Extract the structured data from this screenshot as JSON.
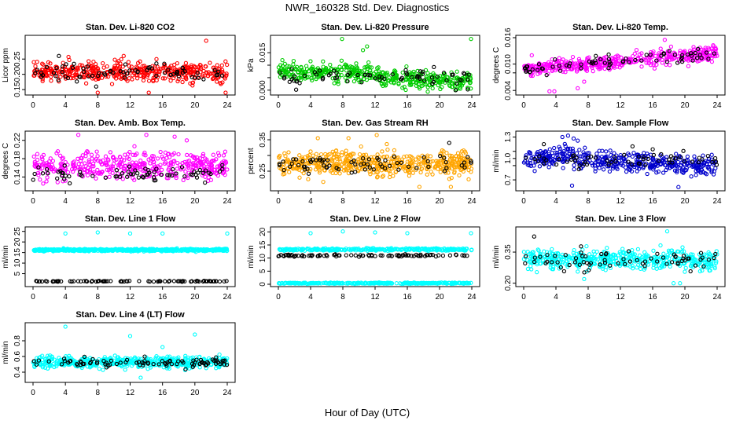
{
  "figure": {
    "title": "NWR_160328  Std. Dev. Diagnostics",
    "xlabel": "Hour of Day (UTC)"
  },
  "chart_data": [
    {
      "type": "scatter",
      "title": "Stan. Dev. Li-820 CO2",
      "ylabel": "Licor ppm",
      "xlim": [
        0,
        24
      ],
      "xticks": [
        "0",
        "4",
        "8",
        "12",
        "16",
        "20",
        "24"
      ],
      "ylim": [
        0.14,
        0.32
      ],
      "yticks": [
        0.15,
        0.2,
        0.25
      ],
      "ytick_labels": [
        "0.15",
        "0.20",
        "0.25"
      ],
      "series": [
        {
          "color": "#ff0000",
          "n": 440,
          "mean": 0.208,
          "spread": 0.022,
          "outliers": [
            [
              0.1,
              0.24
            ],
            [
              8.0,
              0.14
            ],
            [
              11.2,
              0.26
            ],
            [
              14.3,
              0.14
            ],
            [
              21.4,
              0.31
            ],
            [
              23.8,
              0.14
            ]
          ]
        },
        {
          "color": "#000000",
          "n": 70,
          "mean": 0.205,
          "spread": 0.02,
          "outliers": [
            [
              3.2,
              0.26
            ],
            [
              7.8,
              0.16
            ]
          ]
        }
      ]
    },
    {
      "type": "scatter",
      "title": "Stan. Dev. Li-820 Pressure",
      "ylabel": "kPa",
      "xlim": [
        0,
        24
      ],
      "xticks": [
        "0",
        "4",
        "8",
        "12",
        "16",
        "20",
        "24"
      ],
      "ylim": [
        -0.001,
        0.021
      ],
      "yticks": [
        0.0,
        0.005,
        0.01,
        0.015
      ],
      "ytick_labels": [
        "0.000",
        "",
        "",
        "0.015"
      ],
      "series": [
        {
          "color": "#00cc00",
          "n": 440,
          "mean": 0.0065,
          "spread": 0.0025,
          "trend": [
            [
              0,
              0.0075
            ],
            [
              12,
              0.007
            ],
            [
              13,
              0.005
            ],
            [
              24,
              0.0035
            ]
          ],
          "outliers": [
            [
              0.5,
              0.012
            ],
            [
              7.9,
              0.0205
            ],
            [
              10.5,
              0.016
            ],
            [
              11.0,
              0.0175
            ],
            [
              23.9,
              0.0205
            ]
          ]
        },
        {
          "color": "#000000",
          "n": 70,
          "mean": 0.0055,
          "spread": 0.002,
          "outliers": [
            [
              2.2,
              0.0002
            ],
            [
              22.0,
              0.0
            ],
            [
              23.5,
              0.0003
            ]
          ]
        }
      ]
    },
    {
      "type": "scatter",
      "title": "Stan. Dev. Li-820 Temp.",
      "ylabel": "degrees C",
      "xlim": [
        0,
        24
      ],
      "xticks": [
        "0",
        "4",
        "8",
        "12",
        "16",
        "20",
        "24"
      ],
      "ylim": [
        0.0035,
        0.016
      ],
      "yticks": [
        0.004,
        0.008,
        0.01,
        0.016
      ],
      "ytick_labels": [
        "0.004",
        "",
        "0.010",
        "0.016"
      ],
      "series": [
        {
          "color": "#ff00ff",
          "n": 440,
          "mean": 0.01,
          "spread": 0.0012,
          "trend": [
            [
              0,
              0.009
            ],
            [
              12,
              0.0105
            ],
            [
              16,
              0.0112
            ],
            [
              24,
              0.0125
            ]
          ],
          "outliers": [
            [
              1.0,
              0.012
            ],
            [
              3.2,
              0.0038
            ],
            [
              3.8,
              0.0038
            ],
            [
              6.7,
              0.0045
            ],
            [
              7.5,
              0.006
            ],
            [
              17.5,
              0.0155
            ]
          ]
        },
        {
          "color": "#000000",
          "n": 70,
          "mean": 0.0105,
          "spread": 0.0012,
          "trend": [
            [
              0,
              0.009
            ],
            [
              24,
              0.0125
            ]
          ],
          "outliers": []
        }
      ]
    },
    {
      "type": "scatter",
      "title": "Stan. Dev. Amb. Box Temp.",
      "ylabel": "degrees C",
      "xlim": [
        0,
        24
      ],
      "xticks": [
        "0",
        "4",
        "8",
        "12",
        "16",
        "20",
        "24"
      ],
      "ylim": [
        0.115,
        0.235
      ],
      "yticks": [
        0.14,
        0.18,
        0.22
      ],
      "ytick_labels": [
        "0.14",
        "0.18",
        "0.22"
      ],
      "series": [
        {
          "color": "#ff00ff",
          "n": 420,
          "mean": 0.165,
          "spread": 0.02,
          "outliers": [
            [
              5.6,
              0.232
            ],
            [
              14.0,
              0.232
            ],
            [
              17.5,
              0.228
            ],
            [
              19.0,
              0.22
            ]
          ]
        },
        {
          "color": "#000000",
          "n": 70,
          "mean": 0.15,
          "spread": 0.012,
          "outliers": []
        }
      ]
    },
    {
      "type": "scatter",
      "title": "Stan. Dev. Gas Stream RH",
      "ylabel": "percent",
      "xlim": [
        0,
        24
      ],
      "xticks": [
        "0",
        "4",
        "8",
        "12",
        "16",
        "20",
        "24"
      ],
      "ylim": [
        0.195,
        0.37
      ],
      "yticks": [
        0.25,
        0.3,
        0.35
      ],
      "ytick_labels": [
        "0.25",
        "",
        "0.35"
      ],
      "series": [
        {
          "color": "#ffa500",
          "n": 520,
          "mean": 0.275,
          "spread": 0.028,
          "outliers": [
            [
              4.9,
              0.355
            ],
            [
              8.7,
              0.355
            ],
            [
              12.2,
              0.365
            ],
            [
              17.5,
              0.2
            ],
            [
              21.4,
              0.2
            ]
          ]
        },
        {
          "color": "#000000",
          "n": 70,
          "mean": 0.27,
          "spread": 0.018,
          "outliers": [
            [
              21.2,
              0.34
            ]
          ]
        }
      ]
    },
    {
      "type": "scatter",
      "title": "Stan. Dev. Sample Flow",
      "ylabel": "ml/min",
      "xlim": [
        0,
        24
      ],
      "xticks": [
        "0",
        "4",
        "8",
        "12",
        "16",
        "20",
        "24"
      ],
      "ylim": [
        0.58,
        1.35
      ],
      "yticks": [
        0.7,
        0.9,
        1.0,
        1.1,
        1.3
      ],
      "ytick_labels": [
        "0.7",
        "",
        "1.0",
        "",
        "1.3"
      ],
      "series": [
        {
          "color": "#0000cc",
          "n": 440,
          "mean": 0.96,
          "spread": 0.1,
          "trend": [
            [
              0,
              0.98
            ],
            [
              5,
              1.03
            ],
            [
              10,
              0.96
            ],
            [
              24,
              0.9
            ]
          ],
          "outliers": [
            [
              4.8,
              1.3
            ],
            [
              5.5,
              1.32
            ],
            [
              6.2,
              1.28
            ],
            [
              6.7,
              1.25
            ],
            [
              19.2,
              0.6
            ],
            [
              6.0,
              0.62
            ]
          ]
        },
        {
          "color": "#000000",
          "n": 60,
          "mean": 0.98,
          "spread": 0.08,
          "outliers": [
            [
              2.5,
              1.2
            ],
            [
              13.5,
              1.17
            ]
          ]
        }
      ]
    },
    {
      "type": "scatter",
      "title": "Stan. Dev. Line 1 Flow",
      "ylabel": "ml/min",
      "xlim": [
        0,
        24
      ],
      "xticks": [
        "0",
        "4",
        "8",
        "12",
        "16",
        "20",
        "24"
      ],
      "ylim": [
        0,
        26
      ],
      "yticks": [
        5,
        10,
        15,
        20,
        25
      ],
      "ytick_labels": [
        "5",
        "10",
        "15",
        "20",
        "25"
      ],
      "series": [
        {
          "color": "#00ffff",
          "n": 520,
          "mean": 16.2,
          "spread": 0.4,
          "outliers": [
            [
              4.0,
              24
            ],
            [
              8.0,
              24.5
            ],
            [
              12.0,
              24
            ],
            [
              16.0,
              24
            ],
            [
              24.0,
              24
            ]
          ]
        },
        {
          "color": "#000000",
          "n": 90,
          "mean": 1.4,
          "spread": 0.15,
          "outliers": []
        }
      ]
    },
    {
      "type": "scatter",
      "title": "Stan. Dev. Line 2 Flow",
      "ylabel": "ml/min",
      "xlim": [
        0,
        24
      ],
      "xticks": [
        "0",
        "4",
        "8",
        "12",
        "16",
        "20",
        "24"
      ],
      "ylim": [
        0,
        21
      ],
      "yticks": [
        0,
        5,
        10,
        15,
        20
      ],
      "ytick_labels": [
        "0",
        "5",
        "10",
        "15",
        "20"
      ],
      "series": [
        {
          "color": "#00ffff",
          "n": 300,
          "mean": 13.3,
          "spread": 0.3,
          "outliers": [
            [
              4.0,
              19.5
            ],
            [
              8.0,
              20.2
            ],
            [
              12.0,
              19.8
            ],
            [
              16.0,
              19.5
            ],
            [
              23.9,
              19.5
            ]
          ]
        },
        {
          "color": "#00ffff",
          "n": 300,
          "mean": 0.4,
          "spread": 0.15,
          "outliers": []
        },
        {
          "color": "#000000",
          "n": 90,
          "mean": 11.0,
          "spread": 0.3,
          "outliers": []
        }
      ]
    },
    {
      "type": "scatter",
      "title": "Stan. Dev. Line 3 Flow",
      "ylabel": "ml/min",
      "xlim": [
        0,
        24
      ],
      "xticks": [
        "0",
        "4",
        "8",
        "12",
        "16",
        "20",
        "24"
      ],
      "ylim": [
        0.195,
        0.46
      ],
      "yticks": [
        0.2,
        0.35
      ],
      "ytick_labels": [
        "0.20",
        "0.35"
      ],
      "series": [
        {
          "color": "#00ffff",
          "n": 480,
          "mean": 0.315,
          "spread": 0.035,
          "outliers": [
            [
              17.8,
              0.45
            ],
            [
              18.6,
              0.2
            ],
            [
              19.4,
              0.2
            ],
            [
              7.5,
              0.22
            ]
          ]
        },
        {
          "color": "#000000",
          "n": 70,
          "mean": 0.31,
          "spread": 0.035,
          "outliers": [
            [
              1.3,
              0.425
            ]
          ]
        }
      ]
    },
    {
      "type": "scatter",
      "title": "Stan. Dev. Line 4 (LT) Flow",
      "ylabel": "ml/min",
      "xlim": [
        0,
        24
      ],
      "xticks": [
        "0",
        "4",
        "8",
        "12",
        "16",
        "20",
        "24"
      ],
      "ylim": [
        0.3,
        1.0
      ],
      "yticks": [
        0.4,
        0.6,
        0.8
      ],
      "ytick_labels": [
        "0.4",
        "0.6",
        "0.8"
      ],
      "series": [
        {
          "color": "#00ffff",
          "n": 480,
          "mean": 0.525,
          "spread": 0.05,
          "outliers": [
            [
              4.0,
              0.98
            ],
            [
              12.0,
              0.86
            ],
            [
              16.0,
              0.72
            ],
            [
              20.0,
              0.88
            ],
            [
              13.3,
              0.33
            ]
          ]
        },
        {
          "color": "#000000",
          "n": 90,
          "mean": 0.52,
          "spread": 0.04,
          "outliers": []
        }
      ]
    }
  ]
}
